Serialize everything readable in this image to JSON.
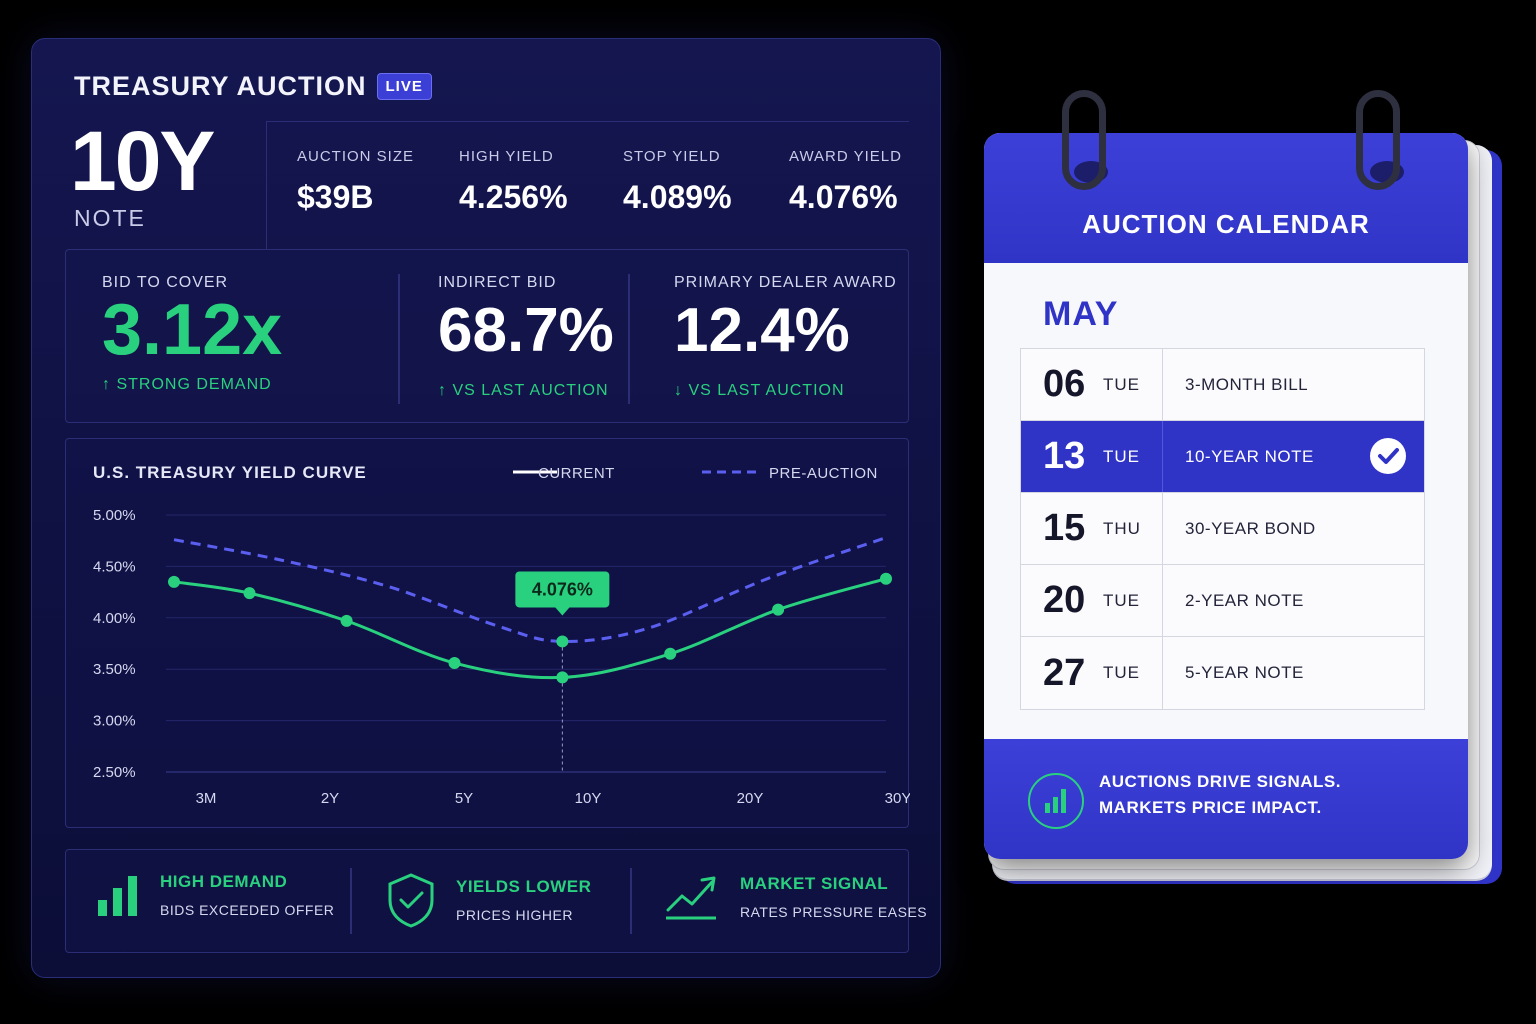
{
  "header": {
    "title": "TREASURY AUCTION",
    "live_badge": "LIVE",
    "tenor": "10Y",
    "tenor_sub": "NOTE"
  },
  "stats": [
    {
      "label": "AUCTION SIZE",
      "value": "$39B"
    },
    {
      "label": "HIGH YIELD",
      "value": "4.256%"
    },
    {
      "label": "STOP YIELD",
      "value": "4.089%"
    },
    {
      "label": "AWARD YIELD",
      "value": "4.076%"
    }
  ],
  "metrics": [
    {
      "label": "BID TO COVER",
      "value": "3.12x",
      "sub": "↑ STRONG DEMAND"
    },
    {
      "label": "INDIRECT BID",
      "value": "68.7%",
      "sub": "↑ VS LAST AUCTION"
    },
    {
      "label": "PRIMARY DEALER AWARD",
      "value": "12.4%",
      "sub": "↓ VS LAST AUCTION"
    }
  ],
  "chart_data": {
    "type": "line",
    "title": "U.S. TREASURY YIELD CURVE",
    "x_tick_labels": [
      "3M",
      "2Y",
      "5Y",
      "10Y",
      "20Y",
      "30Y"
    ],
    "y_tick_labels": [
      "5.00%",
      "4.50%",
      "4.00%",
      "3.50%",
      "3.00%",
      "2.50%"
    ],
    "ylim": [
      2.5,
      5.0
    ],
    "series": [
      {
        "name": "CURRENT",
        "style": "solid",
        "color": "#29d17f",
        "points": [
          [
            0,
            4.35
          ],
          [
            0.7,
            4.24
          ],
          [
            1.6,
            3.97
          ],
          [
            2.6,
            3.56
          ],
          [
            3.6,
            3.42
          ],
          [
            4.6,
            3.65
          ],
          [
            5.6,
            4.08
          ],
          [
            6.6,
            4.38
          ]
        ]
      },
      {
        "name": "PRE-AUCTION",
        "style": "dashed",
        "color": "#5b5ff0",
        "points": [
          [
            0,
            4.76
          ],
          [
            1.0,
            4.56
          ],
          [
            2.0,
            4.3
          ],
          [
            3.0,
            3.92
          ],
          [
            3.6,
            3.77
          ],
          [
            4.4,
            3.9
          ],
          [
            5.5,
            4.38
          ],
          [
            6.6,
            4.78
          ]
        ]
      }
    ],
    "highlight": {
      "label": "4.076%",
      "x": 3.6,
      "y": 3.77
    },
    "grid": true,
    "legend_position": "top-right"
  },
  "features": [
    {
      "icon": "bar-chart-icon",
      "title": "HIGH DEMAND",
      "subtitle": "BIDS EXCEEDED OFFER"
    },
    {
      "icon": "shield-check-icon",
      "title": "YIELDS LOWER",
      "subtitle": "PRICES HIGHER"
    },
    {
      "icon": "trend-up-icon",
      "title": "MARKET SIGNAL",
      "subtitle": "RATES PRESSURE EASES"
    }
  ],
  "calendar": {
    "title": "AUCTION CALENDAR",
    "month": "MAY",
    "rows": [
      {
        "day": "06",
        "weekday": "TUE",
        "event": "3-MONTH BILL",
        "selected": false
      },
      {
        "day": "13",
        "weekday": "TUE",
        "event": "10-YEAR NOTE",
        "selected": true
      },
      {
        "day": "15",
        "weekday": "THU",
        "event": "30-YEAR BOND",
        "selected": false
      },
      {
        "day": "20",
        "weekday": "TUE",
        "event": "2-YEAR NOTE",
        "selected": false
      },
      {
        "day": "27",
        "weekday": "TUE",
        "event": "5-YEAR NOTE",
        "selected": false
      }
    ],
    "footer_line1": "AUCTIONS DRIVE SIGNALS.",
    "footer_line2": "MARKETS PRICE IMPACT."
  },
  "colors": {
    "accent_green": "#29d17f",
    "accent_blue": "#3034c6",
    "panel_bg": "#0f1142"
  }
}
